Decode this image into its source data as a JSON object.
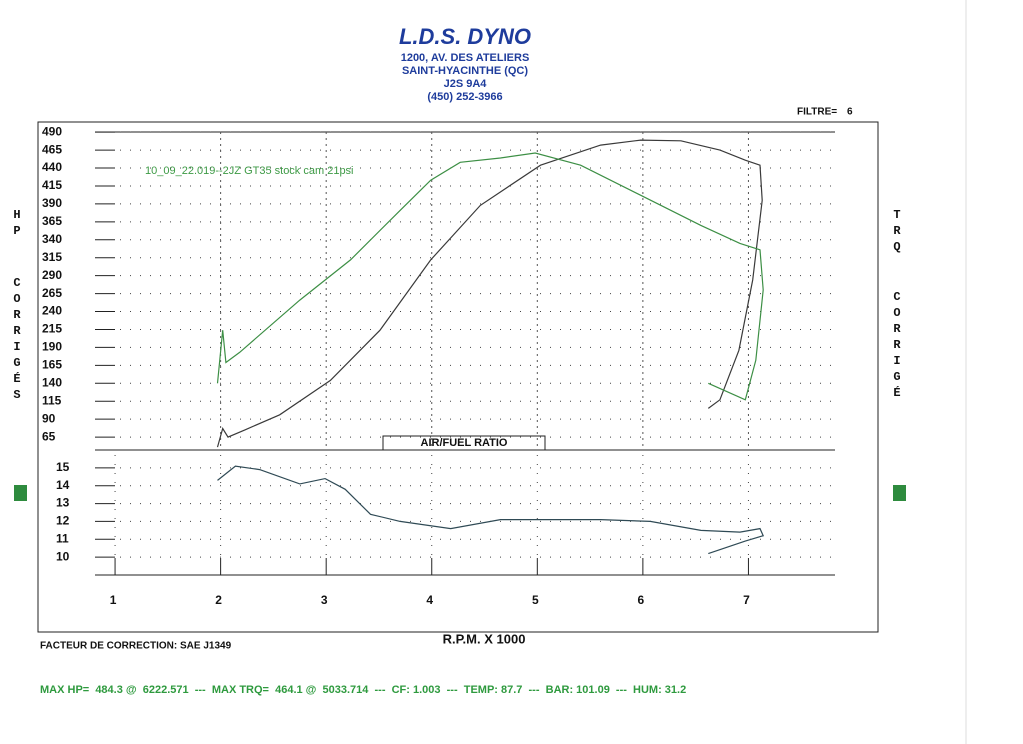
{
  "header": {
    "title": "L.D.S. DYNO",
    "lines": [
      "1200, AV. DES ATELIERS",
      "SAINT-HYACINTHE (QC)",
      "J2S 9A4",
      "(450) 252-3966"
    ],
    "filter_label": "FILTRE=",
    "filter_value": 6
  },
  "chart_data": [
    {
      "type": "line",
      "annotation": "10_09_22.019--2JZ GT35 stock cam 21psi",
      "y_label": "HP",
      "y_label_sub": "CORRIGÉS",
      "y2_label": "TRQ",
      "y2_label_sub": "CORRIGÉ",
      "xlim": [
        0.81,
        7.82
      ],
      "ylim": [
        47,
        500
      ],
      "yticks": [
        490,
        465,
        440,
        415,
        390,
        365,
        340,
        315,
        290,
        265,
        240,
        215,
        190,
        165,
        140,
        115,
        90,
        65
      ],
      "grid": true,
      "series": [
        {
          "color": "#3a3a3a",
          "x": [
            1.97,
            2.02,
            2.07,
            2.23,
            2.56,
            3.04,
            3.51,
            3.99,
            4.46,
            5.03,
            5.6,
            5.98,
            6.36,
            6.73,
            6.97,
            7.11,
            7.13,
            7.04,
            6.91,
            6.73,
            6.62
          ],
          "values": [
            51,
            77,
            65,
            75,
            96,
            144,
            214,
            312,
            388,
            444,
            472,
            479,
            478,
            465,
            451,
            444,
            395,
            284,
            186,
            117,
            105
          ]
        },
        {
          "color": "#3d8f45",
          "x": [
            1.97,
            2.02,
            2.05,
            2.18,
            2.75,
            3.23,
            3.7,
            3.99,
            4.27,
            4.65,
            4.98,
            5.41,
            5.98,
            6.55,
            6.92,
            7.11,
            7.14,
            7.07,
            6.97,
            6.62
          ],
          "values": [
            140,
            214,
            169,
            183,
            256,
            312,
            381,
            423,
            448,
            454,
            461,
            444,
            402,
            360,
            335,
            326,
            270,
            172,
            117,
            140
          ]
        }
      ]
    },
    {
      "type": "line",
      "title": "AIR/FUEL RATIO",
      "xlabel": "R.P.M. X 1000",
      "xlim": [
        0.81,
        7.82
      ],
      "xticks": [
        1,
        2,
        3,
        4,
        5,
        6,
        7
      ],
      "ylim": [
        9,
        16
      ],
      "yticks": [
        15,
        14,
        13,
        12,
        11,
        10
      ],
      "grid": true,
      "series": [
        {
          "color": "#2f4a55",
          "x": [
            1.97,
            2.14,
            2.37,
            2.75,
            2.99,
            3.18,
            3.42,
            3.7,
            4.18,
            4.65,
            5.12,
            5.6,
            6.07,
            6.55,
            6.92,
            7.11,
            7.14,
            6.97,
            6.62
          ],
          "values": [
            14.3,
            15.1,
            14.9,
            14.1,
            14.4,
            13.8,
            12.4,
            12.0,
            11.6,
            12.1,
            12.1,
            12.1,
            12.0,
            11.5,
            11.4,
            11.6,
            11.2,
            10.9,
            10.2
          ]
        }
      ]
    }
  ],
  "footer": {
    "correction": "FACTEUR DE CORRECTION: SAE J1349",
    "stats": "MAX HP=  484.3 @  6222.571  ---  MAX TRQ=  464.1 @  5033.714  ---  CF: 1.003  ---  TEMP: 87.7  ---  BAR: 101.09  ---  HUM: 31.2"
  }
}
